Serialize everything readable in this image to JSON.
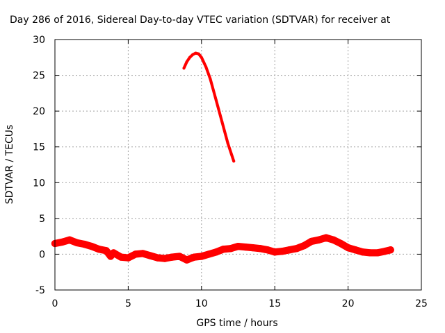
{
  "chart_data": {
    "type": "scatter",
    "title": "Day 286 of 2016, Sidereal Day-to-day VTEC variation (SDTVAR) for receiver at",
    "xlabel": "GPS time / hours",
    "ylabel": "SDTVAR / TECUs",
    "xlim": [
      0,
      25
    ],
    "ylim": [
      -5,
      30
    ],
    "x_ticks": [
      "0",
      "5",
      "10",
      "15",
      "20",
      "25"
    ],
    "y_ticks": [
      "-5",
      "0",
      "5",
      "10",
      "15",
      "20",
      "25",
      "30"
    ],
    "grid": true,
    "legend": "none",
    "series": [
      {
        "color": "#ff0000",
        "band_width": 1.0,
        "x": [
          0.0,
          0.5,
          1.0,
          1.5,
          2.0,
          2.5,
          3.0,
          3.5,
          3.8,
          4.0,
          4.5,
          5.0,
          5.5,
          6.0,
          6.5,
          7.0,
          7.5,
          8.0,
          8.5,
          9.0,
          9.5,
          10.0,
          10.5,
          11.0,
          11.5,
          12.0,
          12.5,
          13.0,
          13.5,
          14.0,
          14.5,
          15.0,
          15.5,
          16.0,
          16.5,
          17.0,
          17.5,
          18.0,
          18.5,
          19.0,
          19.5,
          20.0,
          20.5,
          21.0,
          21.5,
          22.0,
          22.5,
          22.9
        ],
        "y": [
          1.5,
          1.7,
          2.0,
          1.6,
          1.4,
          1.1,
          0.7,
          0.5,
          -0.3,
          0.2,
          -0.4,
          -0.5,
          0.0,
          0.1,
          -0.2,
          -0.5,
          -0.6,
          -0.4,
          -0.3,
          -0.8,
          -0.4,
          -0.3,
          0.0,
          0.3,
          0.7,
          0.8,
          1.1,
          1.0,
          0.9,
          0.8,
          0.6,
          0.3,
          0.4,
          0.6,
          0.8,
          1.2,
          1.8,
          2.0,
          2.3,
          2.0,
          1.5,
          0.9,
          0.6,
          0.3,
          0.2,
          0.2,
          0.4,
          0.6
        ]
      },
      {
        "color": "#ff0000",
        "band_width": 0.4,
        "x": [
          8.8,
          9.0,
          9.2,
          9.4,
          9.6,
          9.8,
          10.0,
          10.3,
          10.6,
          11.0,
          11.4,
          11.8,
          12.2
        ],
        "y": [
          26.0,
          26.9,
          27.5,
          27.9,
          28.1,
          28.0,
          27.5,
          26.2,
          24.5,
          21.5,
          18.5,
          15.5,
          13.0
        ]
      }
    ]
  }
}
